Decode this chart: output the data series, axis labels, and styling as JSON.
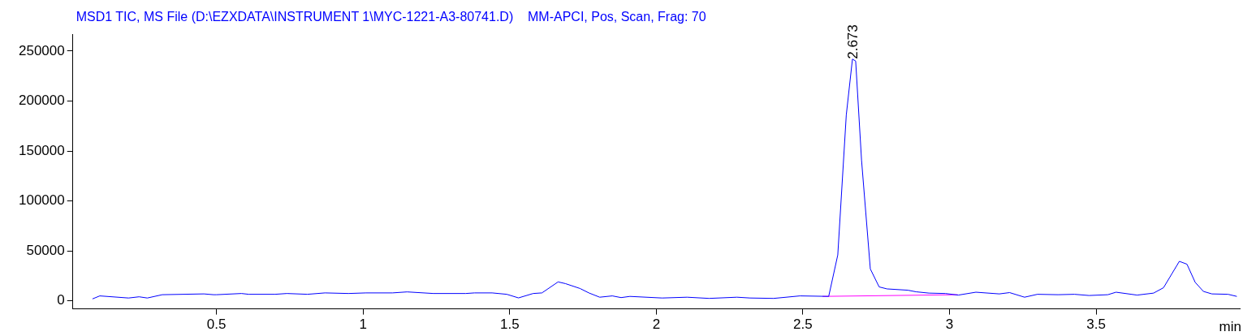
{
  "chart_data": {
    "type": "line",
    "title": "MSD1 TIC, MS File (D:\\EZXDATA\\INSTRUMENT 1\\MYC-1221-A3-80741.D)    MM-APCI, Pos, Scan, Frag: 70",
    "xlabel": "min",
    "xlim": [
      0.01,
      3.99
    ],
    "xticks": [
      0.5,
      1,
      1.5,
      2,
      2.5,
      3,
      3.5
    ],
    "ylim": [
      -8000,
      267000
    ],
    "yticks": [
      0,
      50000,
      100000,
      150000,
      200000,
      250000
    ],
    "marker": "none",
    "line_style": "solid",
    "series": [
      {
        "color": "#0000ff",
        "x": [
          0.077,
          0.102,
          0.2,
          0.236,
          0.264,
          0.315,
          0.457,
          0.49,
          0.5,
          0.585,
          0.61,
          0.7,
          0.74,
          0.81,
          0.87,
          0.95,
          1.01,
          1.1,
          1.15,
          1.24,
          1.35,
          1.38,
          1.44,
          1.49,
          1.53,
          1.58,
          1.61,
          1.665,
          1.69,
          1.74,
          1.77,
          1.807,
          1.85,
          1.88,
          1.91,
          2.02,
          2.105,
          2.18,
          2.275,
          2.32,
          2.4,
          2.49,
          2.588,
          2.619,
          2.648,
          2.669,
          2.68,
          2.7,
          2.73,
          2.76,
          2.787,
          2.858,
          2.886,
          2.93,
          2.986,
          3.03,
          3.09,
          3.17,
          3.205,
          3.256,
          3.3,
          3.37,
          3.426,
          3.476,
          3.54,
          3.568,
          3.64,
          3.696,
          3.73,
          3.784,
          3.81,
          3.838,
          3.866,
          3.895,
          3.95,
          3.98
        ],
        "values": [
          2000,
          5000,
          2900,
          4100,
          2900,
          6200,
          7000,
          6200,
          6200,
          7400,
          6600,
          6600,
          7400,
          6600,
          8000,
          7400,
          8000,
          8000,
          9000,
          7400,
          7400,
          8000,
          8000,
          6600,
          3000,
          7400,
          8000,
          19000,
          17300,
          12400,
          8000,
          3700,
          5000,
          3300,
          4500,
          2900,
          3700,
          2500,
          3700,
          2900,
          2500,
          5000,
          4500,
          46000,
          186000,
          242000,
          240000,
          141000,
          32000,
          14000,
          12000,
          10700,
          9100,
          7800,
          7400,
          5800,
          8700,
          7000,
          8300,
          3700,
          6600,
          6200,
          6600,
          5400,
          6200,
          8700,
          5800,
          7800,
          13200,
          39600,
          36700,
          18600,
          9500,
          7000,
          6600,
          4500
        ]
      },
      {
        "color": "#ff00ff",
        "x": [
          2.567,
          3.028
        ],
        "values": [
          4500,
          6200
        ]
      }
    ],
    "annotations": [
      {
        "text": "2.673",
        "x": 2.673,
        "y": 242000
      }
    ]
  }
}
